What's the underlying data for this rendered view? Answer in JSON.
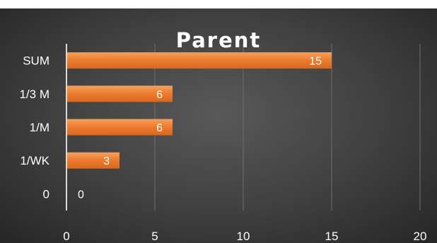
{
  "chart_data": {
    "type": "bar",
    "orientation": "horizontal",
    "title": "Parent",
    "categories": [
      "SUM",
      "1/3 M",
      "1/M",
      "1/WK",
      "0"
    ],
    "values": [
      15,
      6,
      6,
      3,
      0
    ],
    "data_labels": [
      "15",
      "6",
      "6",
      "3",
      "0"
    ],
    "xlim": [
      0,
      20
    ],
    "x_ticks": [
      "0",
      "5",
      "10",
      "15",
      "20"
    ],
    "grid": true,
    "legend": "none",
    "colors": {
      "bar": "#ed7d31",
      "bar_highlight": "#f4a15f",
      "label": "#ffffff",
      "axis_text": "#ffffff",
      "gridline": "#6e6e6e",
      "axis_line": "#d9d9d9",
      "background": "#404040"
    }
  }
}
